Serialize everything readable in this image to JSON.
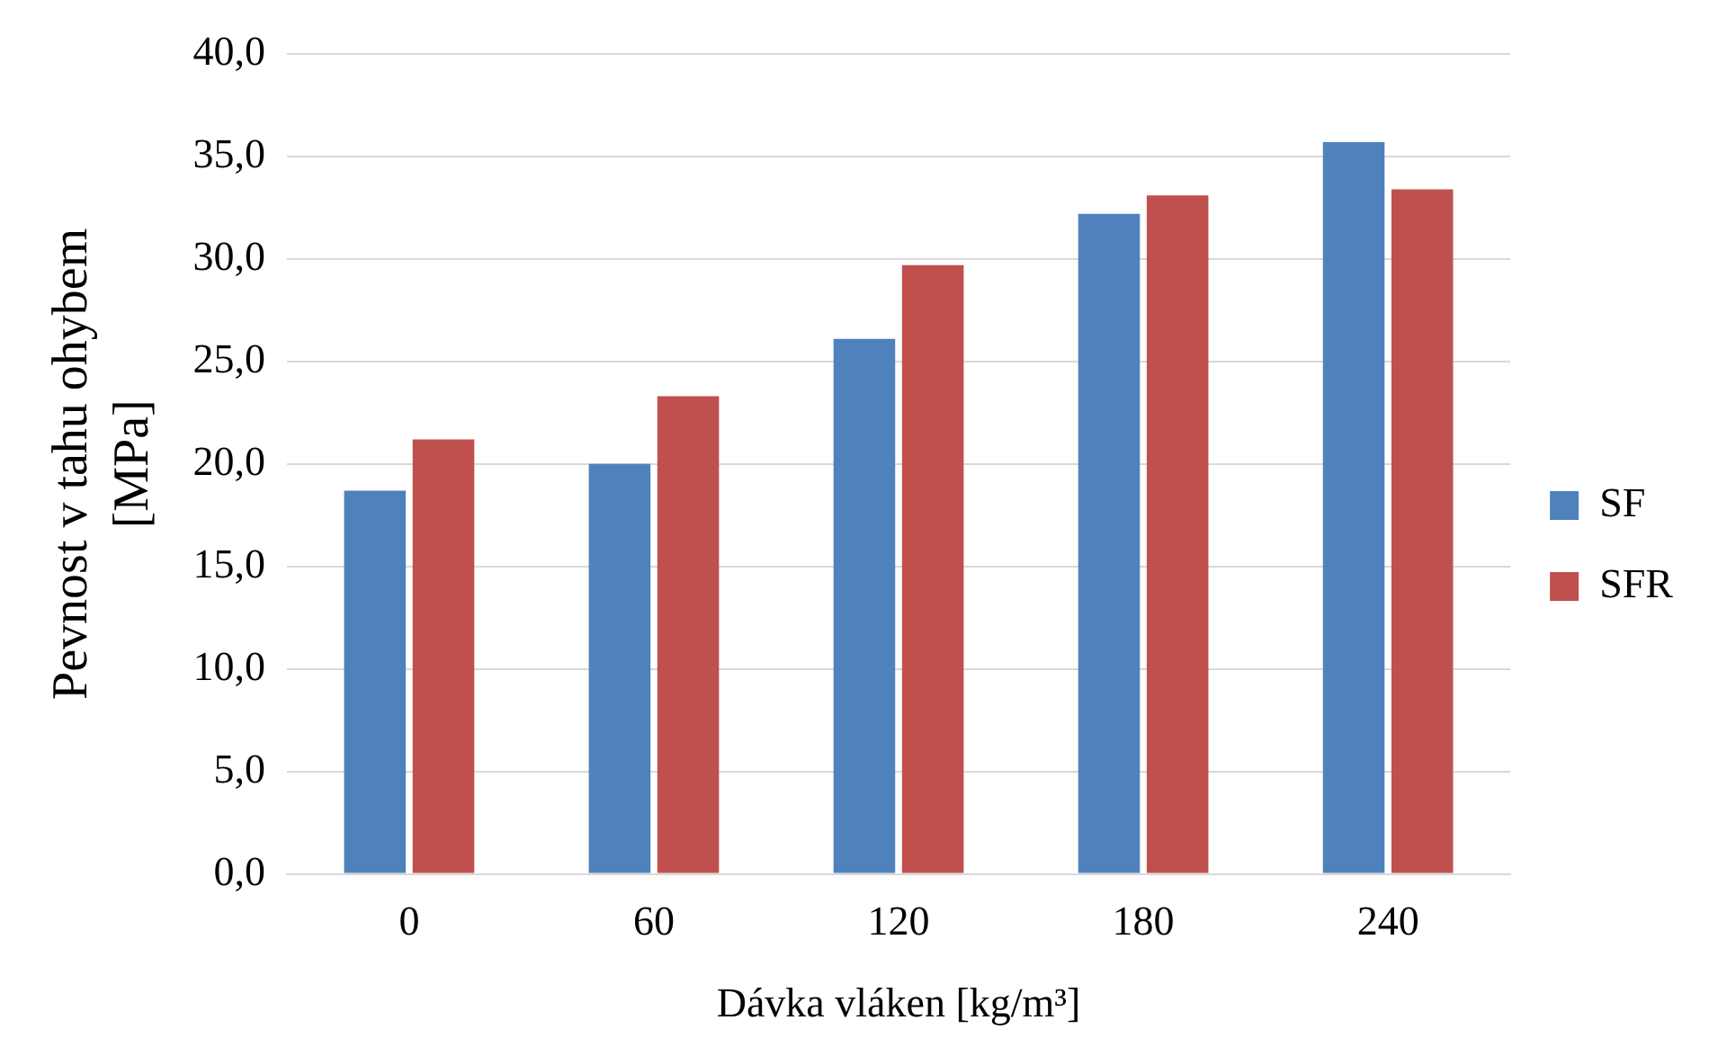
{
  "chart_data": {
    "type": "bar",
    "xlabel": "Dávka vláken [kg/m³]",
    "ylabel": "Pevnost v tahu ohybem [MPa]",
    "categories": [
      "0",
      "60",
      "120",
      "180",
      "240"
    ],
    "series": [
      {
        "name": "SF",
        "color": "#4f81bd",
        "values": [
          18.7,
          20.0,
          26.1,
          32.2,
          35.7
        ]
      },
      {
        "name": "SFR",
        "color": "#c0504d",
        "values": [
          21.2,
          23.3,
          29.7,
          33.1,
          33.4
        ]
      }
    ],
    "ylim": [
      0,
      40
    ],
    "yticks": [
      {
        "value": 0,
        "label": "0,0"
      },
      {
        "value": 5,
        "label": "5,0"
      },
      {
        "value": 10,
        "label": "10,0"
      },
      {
        "value": 15,
        "label": "15,0"
      },
      {
        "value": 20,
        "label": "20,0"
      },
      {
        "value": 25,
        "label": "25,0"
      },
      {
        "value": 30,
        "label": "30,0"
      },
      {
        "value": 35,
        "label": "35,0"
      },
      {
        "value": 40,
        "label": "40,0"
      }
    ],
    "grid": "y",
    "legend": "right"
  }
}
